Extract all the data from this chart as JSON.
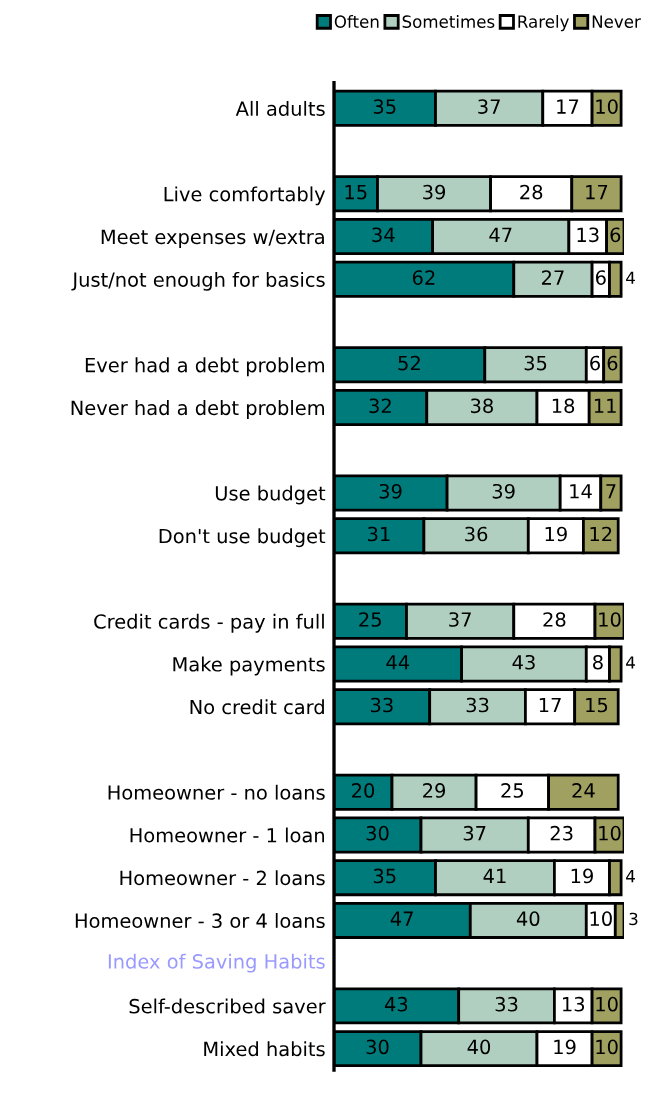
{
  "chart_data": {
    "type": "bar",
    "orientation": "horizontal",
    "stacked": true,
    "data_labels": true,
    "legend": "top",
    "tick_labels": "y",
    "categories": [
      "All adults",
      null,
      "Live comfortably",
      "Meet expenses w/extra",
      "Just/not enough for basics",
      null,
      "Ever had a debt problem",
      "Never had a debt problem",
      null,
      "Use budget",
      "Don't use budget",
      null,
      "Credit cards - pay in full",
      "Make payments",
      "No credit card",
      null,
      "Homeowner - no loans",
      "Homeowner - 1 loan",
      "Homeowner - 2 loans",
      "Homeowner - 3 or 4 loans",
      null,
      "Self-described saver",
      "Mixed habits"
    ],
    "series": [
      {
        "name": "Often",
        "color": "#007b7b",
        "values": [
          35,
          null,
          15,
          34,
          62,
          null,
          52,
          32,
          null,
          39,
          31,
          null,
          25,
          44,
          33,
          null,
          20,
          30,
          35,
          47,
          null,
          43,
          30
        ]
      },
      {
        "name": "Sometimes",
        "color": "#b0cfc0",
        "values": [
          37,
          null,
          39,
          47,
          27,
          null,
          35,
          38,
          null,
          39,
          36,
          null,
          37,
          43,
          33,
          null,
          29,
          37,
          41,
          40,
          null,
          33,
          40
        ]
      },
      {
        "name": "Rarely",
        "color": "#ffffff",
        "values": [
          17,
          null,
          28,
          13,
          6,
          null,
          6,
          18,
          null,
          14,
          19,
          null,
          28,
          8,
          17,
          null,
          25,
          23,
          19,
          10,
          null,
          13,
          19
        ]
      },
      {
        "name": "Never",
        "color": "#a0a060",
        "values": [
          10,
          null,
          17,
          6,
          4,
          null,
          6,
          11,
          null,
          7,
          12,
          null,
          10,
          4,
          15,
          null,
          24,
          10,
          4,
          3,
          null,
          10,
          10
        ]
      }
    ],
    "annotations": [
      "Index of Saving Habits"
    ]
  }
}
